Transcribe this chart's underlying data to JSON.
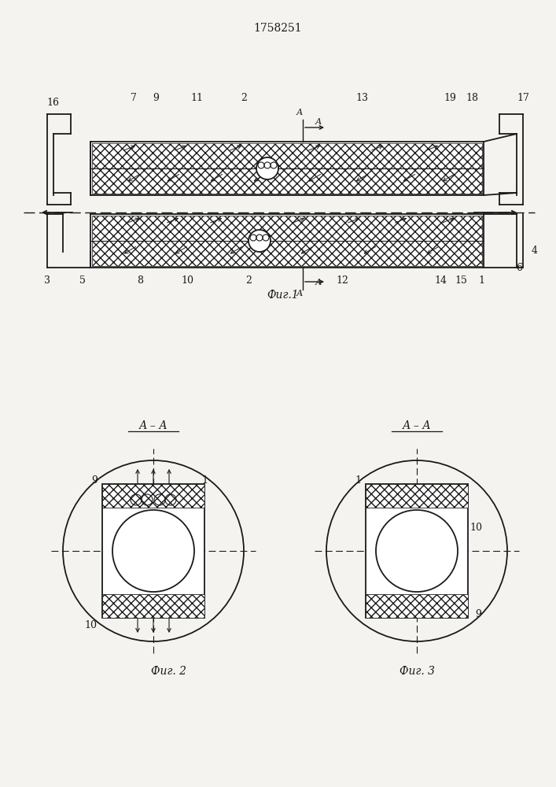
{
  "patent_number": "1758251",
  "bg_color": "#f5f3f0",
  "line_color": "#1a1a1a",
  "fig1_caption": "Фиг.1",
  "fig2_caption": "Фиг. 2",
  "fig3_caption": "Фиг. 3",
  "fig2_aa": "А – А",
  "fig3_aa": "А – А"
}
